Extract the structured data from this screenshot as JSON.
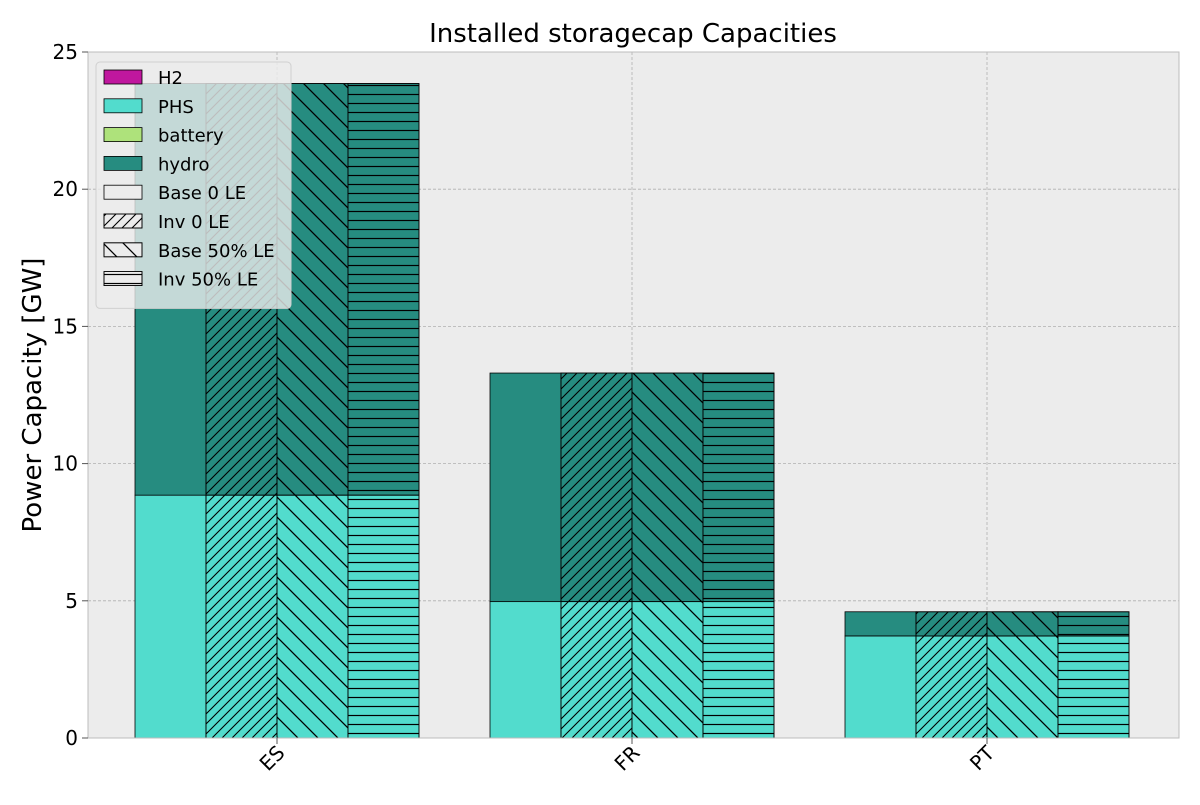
{
  "chart_data": {
    "type": "bar",
    "title": "Installed storagecap Capacities",
    "xlabel": "",
    "ylabel": "Power Capacity [GW]",
    "ylim": [
      0,
      25
    ],
    "yticks": [
      0,
      5,
      10,
      15,
      20,
      25
    ],
    "grid": true,
    "legend_position": "top-left",
    "categories": [
      "ES",
      "FR",
      "PT"
    ],
    "scenarios": [
      {
        "name": "Base 0 LE",
        "pattern": "none"
      },
      {
        "name": "Inv 0 LE",
        "pattern": "diagonal-forward"
      },
      {
        "name": "Base 50% LE",
        "pattern": "diagonal-back"
      },
      {
        "name": "Inv 50% LE",
        "pattern": "horizontal"
      }
    ],
    "technologies": [
      {
        "name": "H2",
        "color": "#c0179e"
      },
      {
        "name": "PHS",
        "color": "#52dccd"
      },
      {
        "name": "battery",
        "color": "#aee27b"
      },
      {
        "name": "hydro",
        "color": "#268c80"
      }
    ],
    "stack_order": [
      "PHS",
      "hydro",
      "battery",
      "H2"
    ],
    "values": {
      "ES": [
        {
          "H2": 0,
          "PHS": 8.85,
          "battery": 0,
          "hydro": 15.0
        },
        {
          "H2": 0,
          "PHS": 8.85,
          "battery": 0,
          "hydro": 15.0
        },
        {
          "H2": 0,
          "PHS": 8.85,
          "battery": 0,
          "hydro": 15.0
        },
        {
          "H2": 0,
          "PHS": 8.85,
          "battery": 0,
          "hydro": 15.0
        }
      ],
      "FR": [
        {
          "H2": 0,
          "PHS": 4.97,
          "battery": 0,
          "hydro": 8.33
        },
        {
          "H2": 0,
          "PHS": 4.97,
          "battery": 0,
          "hydro": 8.33
        },
        {
          "H2": 0,
          "PHS": 4.97,
          "battery": 0,
          "hydro": 8.33
        },
        {
          "H2": 0,
          "PHS": 4.97,
          "battery": 0,
          "hydro": 8.33
        }
      ],
      "PT": [
        {
          "H2": 0,
          "PHS": 3.72,
          "battery": 0,
          "hydro": 0.88
        },
        {
          "H2": 0,
          "PHS": 3.72,
          "battery": 0,
          "hydro": 0.88
        },
        {
          "H2": 0,
          "PHS": 3.72,
          "battery": 0,
          "hydro": 0.88
        },
        {
          "H2": 0,
          "PHS": 3.72,
          "battery": 0,
          "hydro": 0.88
        }
      ]
    },
    "colors": {
      "plot_background": "#ececec",
      "grid": "#b0b0b0",
      "edge": "#000000"
    }
  }
}
